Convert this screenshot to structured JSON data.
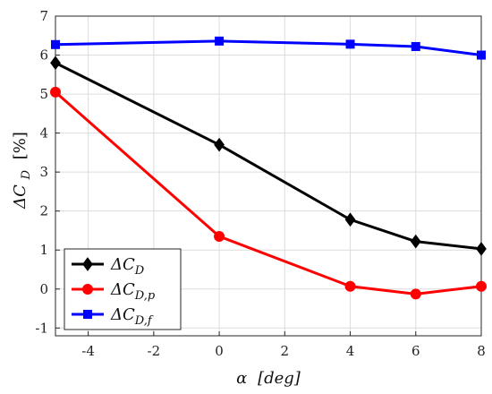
{
  "chart_data": {
    "type": "line",
    "xlabel": "α [deg]",
    "ylabel": "ΔC_D [%]",
    "xlim": [
      -5,
      8
    ],
    "ylim": [
      -1.2,
      7
    ],
    "xticks": [
      -4,
      -2,
      0,
      2,
      4,
      6,
      8
    ],
    "yticks": [
      -1,
      0,
      1,
      2,
      3,
      4,
      5,
      6,
      7
    ],
    "grid": true,
    "legend_position": "bottom-left",
    "x": [
      -5,
      0,
      4,
      6,
      8
    ],
    "series": [
      {
        "name": "ΔC_D",
        "legend_main": "ΔC",
        "legend_sub": "D",
        "color": "#000000",
        "marker": "diamond",
        "values": [
          5.8,
          3.7,
          1.78,
          1.22,
          1.03
        ]
      },
      {
        "name": "ΔC_D,p",
        "legend_main": "ΔC",
        "legend_sub": "D,p",
        "color": "#ff0000",
        "marker": "circle",
        "values": [
          5.05,
          1.35,
          0.07,
          -0.13,
          0.07
        ]
      },
      {
        "name": "ΔC_D,f",
        "legend_main": "ΔC",
        "legend_sub": "D,f",
        "color": "#0000ff",
        "marker": "square",
        "values": [
          6.27,
          6.36,
          6.28,
          6.22,
          6.0
        ]
      }
    ]
  },
  "axis_text": {
    "x_symbol": "α",
    "x_unit": "[deg]",
    "y_main": "ΔC",
    "y_sub": "D",
    "y_unit": "[%]"
  }
}
